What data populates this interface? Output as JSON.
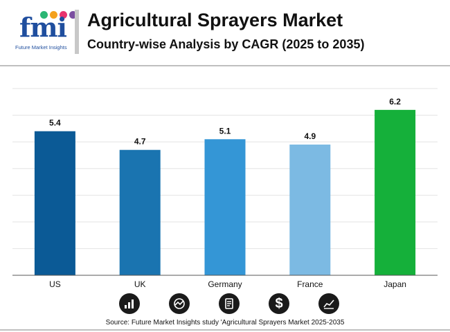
{
  "logo": {
    "letters": "fmi",
    "subtitle": "Future Market Insights",
    "dot_colors": [
      "#2bb673",
      "#f4a11d",
      "#e8336d",
      "#7b4fa0"
    ]
  },
  "header": {
    "title": "Agricultural Sprayers Market",
    "subtitle": "Country-wise Analysis by CAGR (2025 to 2035)"
  },
  "chart_data": {
    "type": "bar",
    "categories": [
      "US",
      "UK",
      "Germany",
      "France",
      "Japan"
    ],
    "values": [
      5.4,
      4.7,
      5.1,
      4.9,
      6.2
    ],
    "value_labels": [
      "5.4",
      "4.7",
      "5.1",
      "4.9",
      "6.2"
    ],
    "colors": [
      "#0b5a96",
      "#1a74b0",
      "#3496d6",
      "#7cbae3",
      "#15b03a"
    ],
    "ylim": [
      0,
      7
    ],
    "grid": true,
    "xlabel": "",
    "ylabel": ""
  },
  "icons": [
    "bar-chart-icon",
    "globe-chart-icon",
    "document-icon",
    "dollar-icon",
    "trend-chart-icon"
  ],
  "footer": {
    "source": "Source: Future Market Insights study 'Agricultural Sprayers Market 2025-2035"
  }
}
